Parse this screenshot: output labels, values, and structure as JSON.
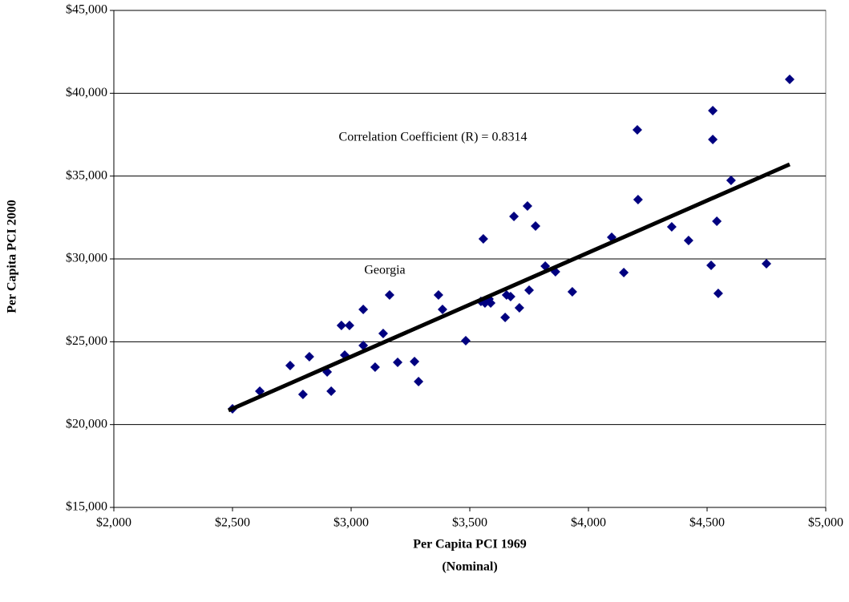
{
  "chart_data": {
    "type": "scatter",
    "x_label": [
      "Per Capita PCI 1969",
      "(Nominal)"
    ],
    "y_label": "Per Capita PCI 2000",
    "annotations": [
      "Correlation Coefficient (R) = 0.8314",
      "Georgia"
    ],
    "points": {
      "color": "#000080",
      "x": [
        2500,
        2615,
        2743,
        2797,
        2824,
        2899,
        2916,
        2959,
        2993,
        2973,
        3051,
        3051,
        3101,
        3135,
        3162,
        3196,
        3267,
        3284,
        3368,
        3385,
        3483,
        3557,
        3547,
        3564,
        3581,
        3588,
        3655,
        3672,
        3649,
        3709,
        3750,
        3686,
        3743,
        3777,
        3818,
        3861,
        3932,
        4098,
        4149,
        4206,
        4209,
        4351,
        4422,
        4524,
        4524,
        4541,
        4517,
        4547,
        4601,
        4750,
        4848
      ],
      "y": [
        20950,
        22016,
        23565,
        21823,
        24097,
        23177,
        22016,
        25984,
        25984,
        24194,
        26952,
        24774,
        23468,
        25500,
        27823,
        23758,
        23806,
        22597,
        27823,
        26952,
        25065,
        31208,
        27435,
        27338,
        27581,
        27338,
        27823,
        27726,
        26468,
        27048,
        28113,
        32565,
        33194,
        31984,
        29565,
        29226,
        28016,
        31306,
        29177,
        37790,
        33581,
        31935,
        31113,
        38951,
        37210,
        32274,
        29613,
        27919,
        34742,
        29710,
        40839
      ]
    },
    "trendline": {
      "color": "#000000",
      "x": [
        2483,
        4848
      ],
      "y": [
        20855,
        35710
      ]
    },
    "xlim": [
      2000,
      5000
    ],
    "ylim": [
      15000,
      45000
    ],
    "xticks": [
      {
        "value": 2000,
        "label": "$2,000"
      },
      {
        "value": 2500,
        "label": "$2,500"
      },
      {
        "value": 3000,
        "label": "$3,000"
      },
      {
        "value": 3500,
        "label": "$3,500"
      },
      {
        "value": 4000,
        "label": "$4,000"
      },
      {
        "value": 4500,
        "label": "$4,500"
      },
      {
        "value": 5000,
        "label": "$5,000"
      }
    ],
    "yticks": [
      {
        "value": 15000,
        "label": "$15,000"
      },
      {
        "value": 20000,
        "label": "$20,000"
      },
      {
        "value": 25000,
        "label": "$25,000"
      },
      {
        "value": 30000,
        "label": "$30,000"
      },
      {
        "value": 35000,
        "label": "$35,000"
      },
      {
        "value": 40000,
        "label": "$40,000"
      },
      {
        "value": 45000,
        "label": "$45,000"
      }
    ],
    "grid": true
  }
}
